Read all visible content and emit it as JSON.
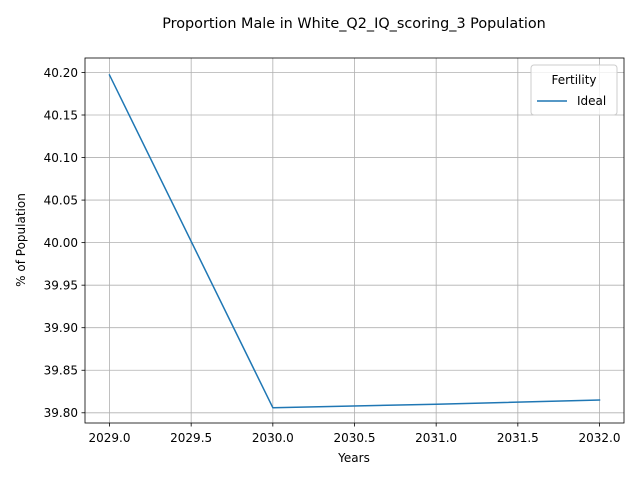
{
  "chart_data": {
    "type": "line",
    "title": "Proportion Male in White_Q2_IQ_scoring_3 Population",
    "xlabel": "Years",
    "ylabel": "% of Population",
    "xlim": [
      2028.85,
      2032.15
    ],
    "ylim": [
      39.788,
      40.217
    ],
    "x_ticks": [
      2029.0,
      2029.5,
      2030.0,
      2030.5,
      2031.0,
      2031.5,
      2032.0
    ],
    "x_tick_labels": [
      "2029.0",
      "2029.5",
      "2030.0",
      "2030.5",
      "2031.0",
      "2031.5",
      "2032.0"
    ],
    "y_ticks": [
      39.8,
      39.85,
      39.9,
      39.95,
      40.0,
      40.05,
      40.1,
      40.15,
      40.2
    ],
    "y_tick_labels": [
      "39.80",
      "39.85",
      "39.90",
      "39.95",
      "40.00",
      "40.05",
      "40.10",
      "40.15",
      "40.20"
    ],
    "grid": true,
    "legend": {
      "title": "Fertility",
      "placement": "top-right"
    },
    "series": [
      {
        "name": "Ideal",
        "color": "#1f77b4",
        "x": [
          2029,
          2030,
          2031,
          2032
        ],
        "y": [
          40.197,
          39.806,
          39.81,
          39.815
        ]
      }
    ]
  }
}
